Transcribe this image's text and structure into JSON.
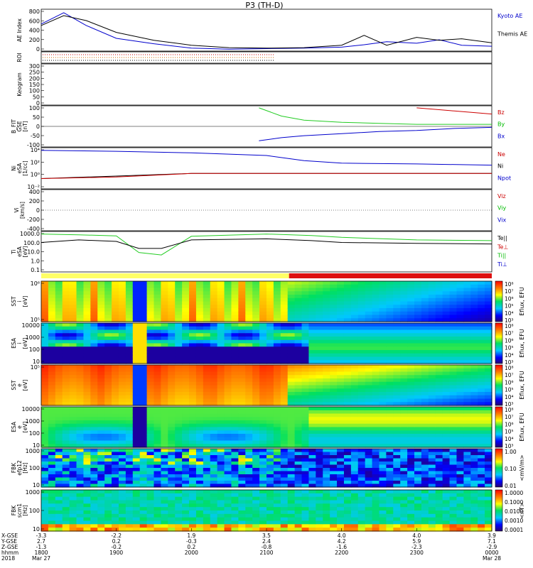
{
  "title": "P3 (TH-D)",
  "footer": {
    "row_labels": [
      "X-GSE",
      "Y-GSE",
      "Z-GSE",
      "hhmm",
      "2018"
    ],
    "ticks": [
      {
        "xgse": "-3.3",
        "ygse": "2.7",
        "zgse": "-1.3",
        "hhmm": "1800",
        "date": "Mar 27"
      },
      {
        "xgse": "-2.2",
        "ygse": "0.2",
        "zgse": "-0.2",
        "hhmm": "1900",
        "date": ""
      },
      {
        "xgse": "1.9",
        "ygse": "-0.3",
        "zgse": "0.2",
        "hhmm": "2000",
        "date": ""
      },
      {
        "xgse": "3.5",
        "ygse": "2.4",
        "zgse": "-0.8",
        "hhmm": "2100",
        "date": ""
      },
      {
        "xgse": "4.0",
        "ygse": "4.2",
        "zgse": "-1.6",
        "hhmm": "2200",
        "date": ""
      },
      {
        "xgse": "4.0",
        "ygse": "5.9",
        "zgse": "-2.3",
        "hhmm": "2300",
        "date": ""
      },
      {
        "xgse": "3.9",
        "ygse": "7.1",
        "zgse": "-2.9",
        "hhmm": "0000",
        "date": "Mar 28"
      }
    ]
  },
  "panels": [
    {
      "id": "ae",
      "ylabel": [
        "AE Index"
      ],
      "yticks": [
        "800",
        "600",
        "400",
        "200",
        "0"
      ],
      "legend": [
        {
          "text": "Kyoto AE",
          "color": "#0000cc"
        },
        {
          "text": "Themis AE",
          "color": "#000000"
        }
      ]
    },
    {
      "id": "roi",
      "ylabel": [
        "ROI"
      ],
      "yticks": [],
      "legend": []
    },
    {
      "id": "keogram",
      "ylabel": [
        "Keogram"
      ],
      "yticks": [
        "300",
        "250",
        "200",
        "150",
        "100",
        "50",
        "0"
      ],
      "legend": []
    },
    {
      "id": "bfit",
      "ylabel": [
        "B_FIT",
        "GSE",
        "[nT]"
      ],
      "yticks": [
        "100",
        "50",
        "0",
        "-50",
        "-100"
      ],
      "legend": [
        {
          "text": "Bz",
          "color": "#cc0000"
        },
        {
          "text": "By",
          "color": "#00bb00"
        },
        {
          "text": "Bx",
          "color": "#0000cc"
        }
      ]
    },
    {
      "id": "ni",
      "ylabel": [
        "Ni",
        "eSA",
        "[1/cc]"
      ],
      "yticks": [
        "10⁴",
        "10²",
        "10⁰",
        "10⁻²"
      ],
      "legend": [
        {
          "text": "Ne",
          "color": "#cc0000"
        },
        {
          "text": "Ni",
          "color": "#000000"
        },
        {
          "text": "Npot",
          "color": "#0000cc"
        }
      ]
    },
    {
      "id": "vi",
      "ylabel": [
        "Vi",
        "[km/s]"
      ],
      "yticks": [
        "400",
        "200",
        "0",
        "-200",
        "-400"
      ],
      "legend": [
        {
          "text": "Viz",
          "color": "#cc0000"
        },
        {
          "text": "Viy",
          "color": "#00bb00"
        },
        {
          "text": "Vix",
          "color": "#0000cc"
        }
      ]
    },
    {
      "id": "ti",
      "ylabel": [
        "Ti",
        "eSA",
        "[eV]"
      ],
      "yticks": [
        "1000.0",
        "100.0",
        "10.0",
        "1.0",
        "0.1"
      ],
      "legend": [
        {
          "text": "Te||",
          "color": "#000000"
        },
        {
          "text": "Te⊥",
          "color": "#cc0000"
        },
        {
          "text": "Ti||",
          "color": "#00bb00"
        },
        {
          "text": "Ti⊥",
          "color": "#0000cc"
        }
      ]
    },
    {
      "id": "sst_i",
      "ylabel": [
        "SST",
        "i",
        "[eV]"
      ],
      "yticks": [
        "10⁶",
        "10⁵"
      ],
      "legend": [],
      "cbar": {
        "ticks": [
          "10⁸",
          "10⁷",
          "10⁶",
          "10⁵",
          "10⁴",
          "10³"
        ],
        "label": "Eflux, EFU"
      }
    },
    {
      "id": "esa_i",
      "ylabel": [
        "ESA",
        "i",
        "[eV]"
      ],
      "yticks": [
        "10000",
        "1000",
        "100",
        "10"
      ],
      "legend": [],
      "cbar": {
        "ticks": [
          "10⁸",
          "10⁷",
          "10⁶",
          "10⁵",
          "10⁴",
          "10³"
        ],
        "label": "Eflux, EFU"
      }
    },
    {
      "id": "sst_e",
      "ylabel": [
        "SST",
        "e",
        "[eV]"
      ],
      "yticks": [
        "10⁵"
      ],
      "legend": [],
      "cbar": {
        "ticks": [
          "10⁸",
          "10⁷",
          "10⁶",
          "10⁵",
          "10⁴",
          "10³"
        ],
        "label": "Eflux, EFU"
      }
    },
    {
      "id": "esa_e",
      "ylabel": [
        "ESA",
        "e",
        "[eV]"
      ],
      "yticks": [
        "10000",
        "1000",
        "100",
        "10"
      ],
      "legend": [],
      "cbar": {
        "ticks": [
          "10⁸",
          "10⁷",
          "10⁶",
          "10⁵",
          "10⁴",
          "10³"
        ],
        "label": "Eflux, EFU"
      }
    },
    {
      "id": "fbk_e",
      "ylabel": [
        "FBK",
        "efp12",
        "[Hz]"
      ],
      "yticks": [
        "1000",
        "100",
        "10"
      ],
      "legend": [],
      "cbar": {
        "ticks": [
          "1.00",
          "0.10",
          "0.01"
        ],
        "label": "<mV/m>"
      }
    },
    {
      "id": "fbk_b",
      "ylabel": [
        "FBK",
        "scm1",
        "[Hz]"
      ],
      "yticks": [
        "1000",
        "100",
        "10"
      ],
      "legend": [],
      "cbar": {
        "ticks": [
          "1.0000",
          "0.1000",
          "0.0100",
          "0.0010",
          "0.0001"
        ],
        "label": "<nT>"
      }
    }
  ],
  "colors": {
    "blue_line": "#0000cc",
    "red_line": "#cc0000",
    "green_line": "#22cc22",
    "mode_bar_slow": "#ffff66",
    "mode_bar_fast": "#dd1111"
  },
  "chart_data": [
    {
      "type": "line",
      "panel": "AE Index",
      "x_hours": [
        18,
        18.3,
        18.6,
        19,
        19.5,
        20,
        20.5,
        21,
        21.5,
        22,
        22.3,
        22.6,
        23,
        23.3,
        23.6,
        24
      ],
      "series": [
        {
          "name": "Kyoto AE",
          "values": [
            550,
            780,
            520,
            260,
            150,
            60,
            40,
            50,
            60,
            80,
            130,
            190,
            160,
            230,
            120,
            100
          ]
        },
        {
          "name": "Themis AE",
          "values": [
            520,
            720,
            620,
            380,
            220,
            120,
            70,
            60,
            70,
            120,
            320,
            120,
            280,
            220,
            250,
            170
          ]
        }
      ],
      "ylim": [
        0,
        850
      ]
    },
    {
      "type": "line",
      "panel": "B_FIT GSE [nT]",
      "x_hours": [
        20.9,
        21.2,
        21.5,
        22,
        22.5,
        23,
        23.5,
        24
      ],
      "series": [
        {
          "name": "Bz",
          "values": [
            null,
            null,
            null,
            null,
            null,
            90,
            75,
            60
          ]
        },
        {
          "name": "By",
          "values": [
            90,
            50,
            30,
            20,
            15,
            10,
            10,
            10
          ]
        },
        {
          "name": "Bx",
          "values": [
            -70,
            -55,
            -45,
            -35,
            -25,
            -20,
            -10,
            -5
          ]
        }
      ],
      "ylim": [
        -100,
        100
      ]
    },
    {
      "type": "line",
      "panel": "Ni eSA [1/cc]",
      "x_hours": [
        18,
        19,
        20,
        21,
        21.5,
        22,
        23,
        24
      ],
      "series": [
        {
          "name": "Npot",
          "values": [
            30000,
            20000,
            10000,
            3000,
            300,
            100,
            70,
            40
          ]
        },
        {
          "name": "Ni",
          "values": [
            0.1,
            0.3,
            1,
            1,
            1,
            1,
            1,
            1
          ]
        },
        {
          "name": "Ne",
          "values": [
            0.1,
            0.2,
            1,
            1,
            1,
            1,
            1,
            1
          ]
        }
      ],
      "ylim": [
        0.001,
        100000
      ]
    },
    {
      "type": "line",
      "panel": "Ti eSA [eV]",
      "x_hours": [
        18,
        18.5,
        19,
        19.3,
        19.6,
        20,
        21,
        21.6,
        22,
        23,
        24
      ],
      "series": [
        {
          "name": "Ti||",
          "values": [
            1500,
            1200,
            900,
            10,
            5,
            800,
            1500,
            1000,
            600,
            300,
            250
          ]
        },
        {
          "name": "Te||",
          "values": [
            150,
            300,
            200,
            30,
            30,
            300,
            400,
            250,
            150,
            120,
            100
          ]
        }
      ],
      "ylim": [
        0.05,
        3000
      ]
    },
    {
      "type": "heatmap",
      "panel": "SST i",
      "zlim": [
        "10³",
        "10⁸"
      ]
    },
    {
      "type": "heatmap",
      "panel": "ESA i",
      "zlim": [
        "10³",
        "10⁸"
      ]
    },
    {
      "type": "heatmap",
      "panel": "SST e",
      "zlim": [
        "10³",
        "10⁸"
      ]
    },
    {
      "type": "heatmap",
      "panel": "ESA e",
      "zlim": [
        "10³",
        "10⁸"
      ]
    },
    {
      "type": "heatmap",
      "panel": "FBK efp12",
      "zlim": [
        "0.01",
        "1.00"
      ]
    },
    {
      "type": "heatmap",
      "panel": "FBK scm1",
      "zlim": [
        "0.0001",
        "1.0000"
      ]
    }
  ]
}
